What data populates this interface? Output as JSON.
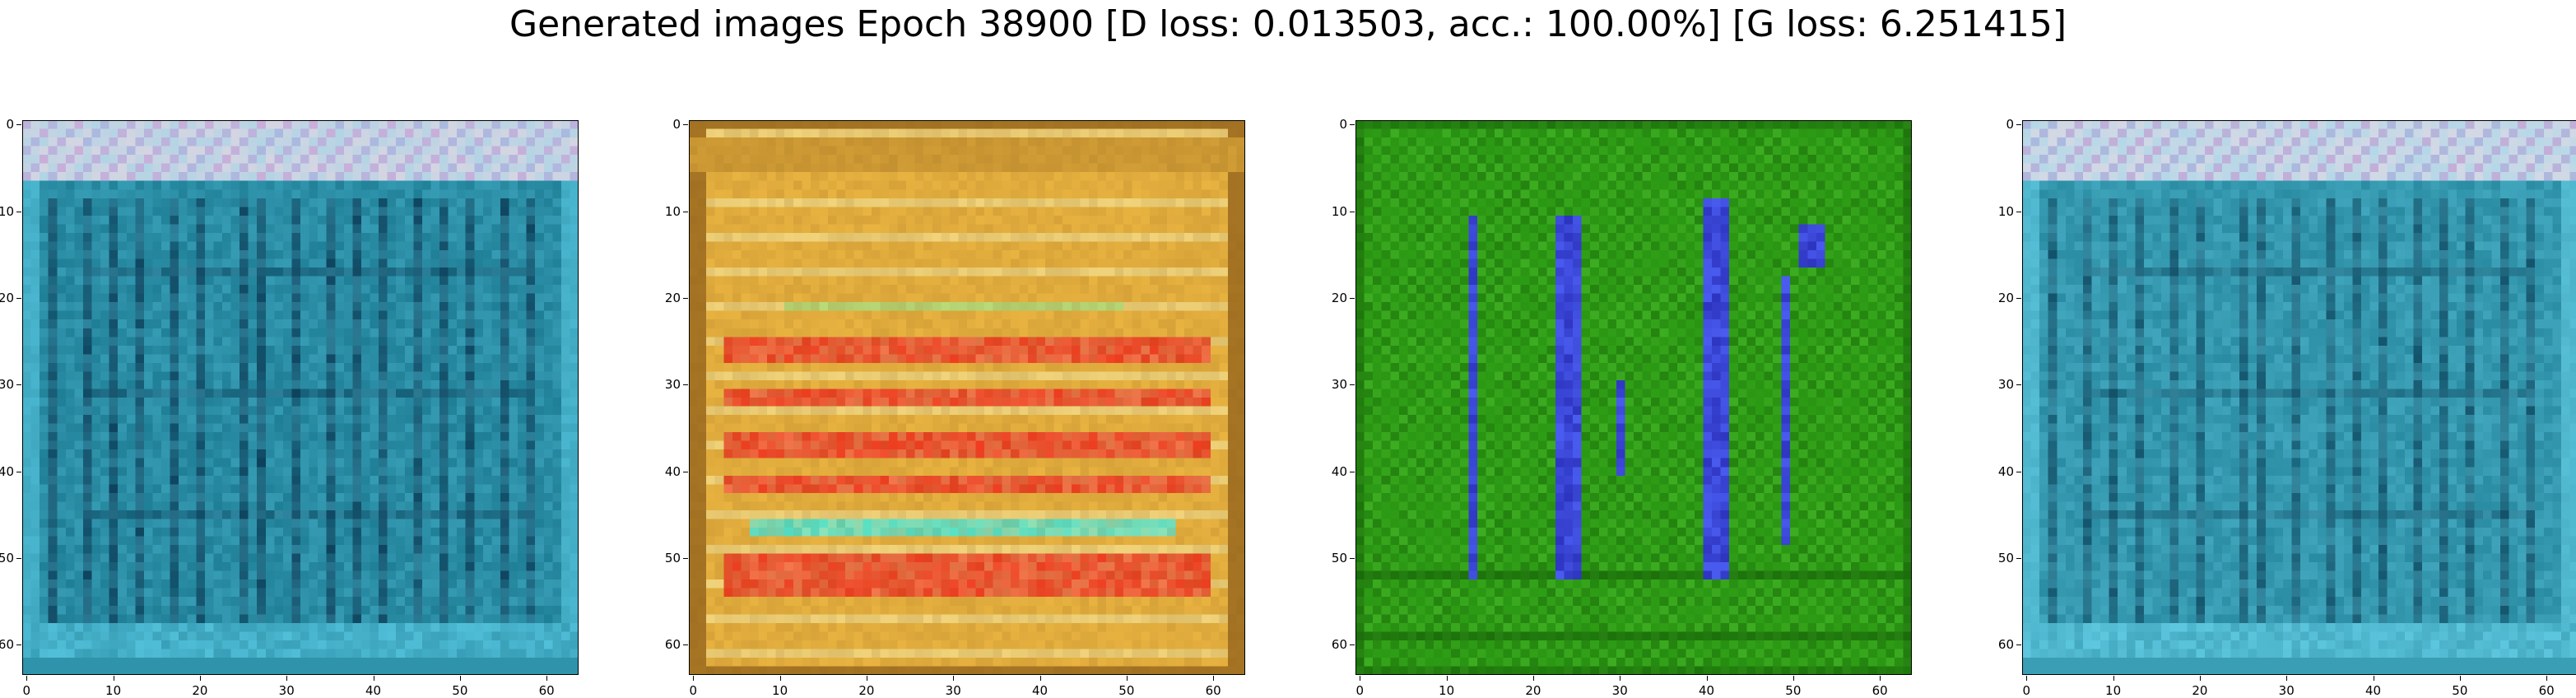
{
  "figure": {
    "title": "Generated images Epoch 38900 [D loss: 0.013503, acc.: 100.00%] [G loss: 6.251415]"
  },
  "axes": {
    "x_ticks": [
      "0",
      "10",
      "20",
      "30",
      "40",
      "50",
      "60"
    ],
    "y_ticks": [
      "0",
      "10",
      "20",
      "30",
      "40",
      "50",
      "60"
    ],
    "x_range": [
      0,
      63
    ],
    "y_range": [
      0,
      63
    ]
  },
  "panels": [
    {
      "name": "generated-image-1",
      "palette": {
        "base": "#1f7f96",
        "dark": "#0b3a55",
        "light": "#5fd0ea",
        "top": "#d8dfe4",
        "accent": "#b97fd0"
      }
    },
    {
      "name": "generated-image-2",
      "palette": {
        "base": "#e8b340",
        "stripe": "#f03c20",
        "light": "#f6e8a0",
        "dark": "#8a5a18",
        "cyan": "#4fe0c8"
      }
    },
    {
      "name": "generated-image-3",
      "palette": {
        "base": "#2c9a14",
        "dark": "#176208",
        "light": "#56c836",
        "blob": "#4a5cf0",
        "blobdark": "#1a1aa0"
      }
    },
    {
      "name": "generated-image-4",
      "palette": {
        "base": "#2a8ca2",
        "dark": "#0f4a62",
        "light": "#6ad6ee",
        "top": "#d8e2e8",
        "accent": "#b07ac8"
      }
    }
  ]
}
